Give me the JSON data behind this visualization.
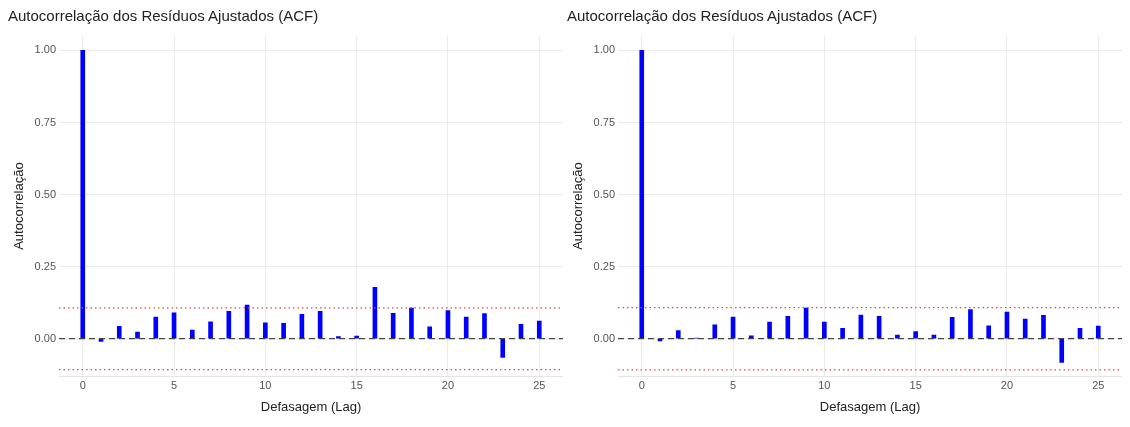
{
  "chart_data": [
    {
      "type": "bar",
      "title": "Autocorrelação dos Resíduos Ajustados (ACF)",
      "xlabel": "Defasagem (Lag)",
      "ylabel": "Autocorrelação",
      "x": [
        0,
        1,
        2,
        3,
        4,
        5,
        6,
        7,
        8,
        9,
        10,
        11,
        12,
        13,
        14,
        15,
        16,
        17,
        18,
        19,
        20,
        21,
        22,
        23,
        24,
        25
      ],
      "values": [
        1,
        -0.009,
        0.043,
        0.023,
        0.075,
        0.09,
        0.03,
        0.059,
        0.095,
        0.117,
        0.055,
        0.053,
        0.085,
        0.095,
        0.007,
        0.009,
        0.178,
        0.088,
        0.106,
        0.041,
        0.098,
        0.075,
        0.087,
        -0.065,
        0.05,
        0.061
      ],
      "color": "#0000ff",
      "xlim": [
        -1.3,
        26.3
      ],
      "xticks": [
        0,
        5,
        10,
        15,
        20,
        25
      ],
      "ylim": [
        -0.13,
        1.05
      ],
      "yticks": [
        {
          "value": 0,
          "label": "0.00"
        },
        {
          "value": 0.25,
          "label": "0.25"
        },
        {
          "value": 0.5,
          "label": "0.50"
        },
        {
          "value": 0.75,
          "label": "0.75"
        },
        {
          "value": 1,
          "label": "1.00"
        }
      ],
      "grid": true,
      "legend": false,
      "ref_lines": [
        {
          "axis": "y",
          "value": 0,
          "color": "#444444",
          "line_style": "dashed"
        },
        {
          "axis": "y",
          "value": 0.107,
          "color": "#e8473f",
          "line_style": "dotted"
        },
        {
          "axis": "y",
          "value": -0.107,
          "color": "#e8473f",
          "line_style": "dotted"
        }
      ]
    },
    {
      "type": "bar",
      "title": "Autocorrelação dos Resíduos Ajustados (ACF)",
      "xlabel": "Defasagem (Lag)",
      "ylabel": "Autocorrelação",
      "x": [
        0,
        1,
        2,
        3,
        4,
        5,
        6,
        7,
        8,
        9,
        10,
        11,
        12,
        13,
        14,
        15,
        16,
        17,
        18,
        19,
        20,
        21,
        22,
        23,
        24,
        25
      ],
      "values": [
        1,
        -0.008,
        0.028,
        0.002,
        0.048,
        0.075,
        0.01,
        0.058,
        0.078,
        0.106,
        0.058,
        0.036,
        0.082,
        0.078,
        0.013,
        0.025,
        0.013,
        0.074,
        0.101,
        0.045,
        0.092,
        0.068,
        0.081,
        -0.082,
        0.036,
        0.044
      ],
      "color": "#0000ff",
      "xlim": [
        -1.3,
        26.3
      ],
      "xticks": [
        0,
        5,
        10,
        15,
        20,
        25
      ],
      "ylim": [
        -0.13,
        1.05
      ],
      "yticks": [
        {
          "value": 0,
          "label": "0.00"
        },
        {
          "value": 0.25,
          "label": "0.25"
        },
        {
          "value": 0.5,
          "label": "0.50"
        },
        {
          "value": 0.75,
          "label": "0.75"
        },
        {
          "value": 1,
          "label": "1.00"
        }
      ],
      "grid": true,
      "legend": false,
      "ref_lines": [
        {
          "axis": "y",
          "value": 0,
          "color": "#444444",
          "line_style": "dashed"
        },
        {
          "axis": "y",
          "value": 0.108,
          "color": "#e8473f",
          "line_style": "dotted"
        },
        {
          "axis": "y",
          "value": -0.108,
          "color": "#e8473f",
          "line_style": "dotted"
        }
      ]
    }
  ]
}
